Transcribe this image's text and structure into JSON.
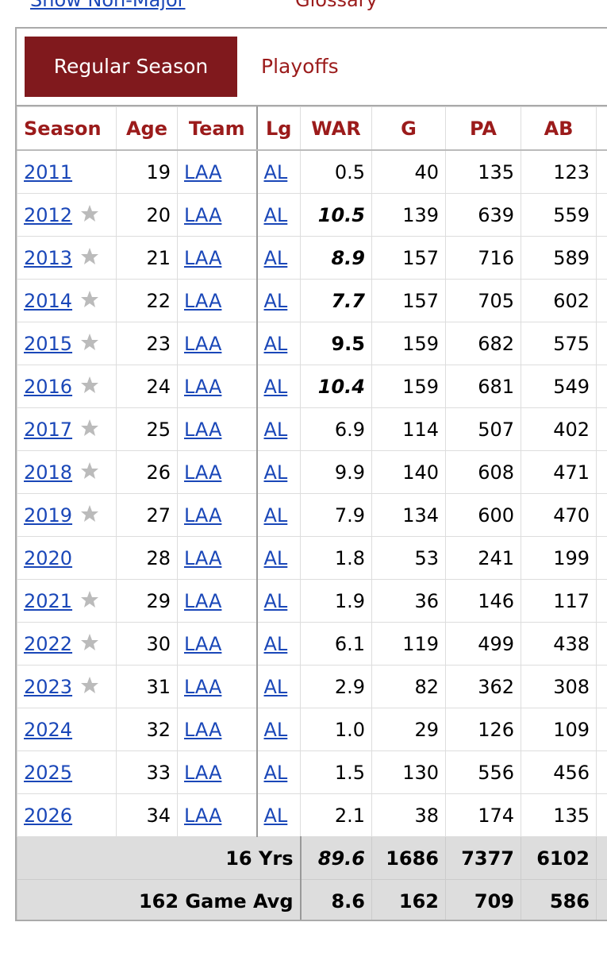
{
  "top_links": {
    "left": "Show Non-Major",
    "right": "Glossary"
  },
  "tabs": {
    "active": "Regular Season",
    "other": "Playoffs"
  },
  "table": {
    "headers": [
      "Season",
      "Age",
      "Team",
      "Lg",
      "WAR",
      "G",
      "PA",
      "AB"
    ],
    "rows": [
      {
        "season": "2011",
        "all_star": false,
        "age": 19,
        "team": "LAA",
        "lg": "AL",
        "war": "0.5",
        "g": 40,
        "pa": 135,
        "ab": 123
      },
      {
        "season": "2012",
        "all_star": true,
        "age": 20,
        "team": "LAA",
        "lg": "AL",
        "war": "10.5",
        "war_emphasis": "bold-italic",
        "g": 139,
        "pa": 639,
        "ab": 559
      },
      {
        "season": "2013",
        "all_star": true,
        "age": 21,
        "team": "LAA",
        "lg": "AL",
        "war": "8.9",
        "war_emphasis": "bold-italic",
        "g": 157,
        "pa": 716,
        "ab": 589
      },
      {
        "season": "2014",
        "all_star": true,
        "age": 22,
        "team": "LAA",
        "lg": "AL",
        "war": "7.7",
        "war_emphasis": "bold-italic",
        "g": 157,
        "pa": 705,
        "ab": 602
      },
      {
        "season": "2015",
        "all_star": true,
        "age": 23,
        "team": "LAA",
        "lg": "AL",
        "war": "9.5",
        "war_emphasis": "bold",
        "g": 159,
        "pa": 682,
        "ab": 575
      },
      {
        "season": "2016",
        "all_star": true,
        "age": 24,
        "team": "LAA",
        "lg": "AL",
        "war": "10.4",
        "war_emphasis": "bold-italic",
        "g": 159,
        "pa": 681,
        "ab": 549
      },
      {
        "season": "2017",
        "all_star": true,
        "age": 25,
        "team": "LAA",
        "lg": "AL",
        "war": "6.9",
        "g": 114,
        "pa": 507,
        "ab": 402
      },
      {
        "season": "2018",
        "all_star": true,
        "age": 26,
        "team": "LAA",
        "lg": "AL",
        "war": "9.9",
        "g": 140,
        "pa": 608,
        "ab": 471
      },
      {
        "season": "2019",
        "all_star": true,
        "age": 27,
        "team": "LAA",
        "lg": "AL",
        "war": "7.9",
        "g": 134,
        "pa": 600,
        "ab": 470
      },
      {
        "season": "2020",
        "all_star": false,
        "age": 28,
        "team": "LAA",
        "lg": "AL",
        "war": "1.8",
        "g": 53,
        "pa": 241,
        "ab": 199
      },
      {
        "season": "2021",
        "all_star": true,
        "age": 29,
        "team": "LAA",
        "lg": "AL",
        "war": "1.9",
        "g": 36,
        "pa": 146,
        "ab": 117
      },
      {
        "season": "2022",
        "all_star": true,
        "age": 30,
        "team": "LAA",
        "lg": "AL",
        "war": "6.1",
        "g": 119,
        "pa": 499,
        "ab": 438
      },
      {
        "season": "2023",
        "all_star": true,
        "age": 31,
        "team": "LAA",
        "lg": "AL",
        "war": "2.9",
        "g": 82,
        "pa": 362,
        "ab": 308
      },
      {
        "season": "2024",
        "all_star": false,
        "age": 32,
        "team": "LAA",
        "lg": "AL",
        "war": "1.0",
        "g": 29,
        "pa": 126,
        "ab": 109
      },
      {
        "season": "2025",
        "all_star": false,
        "age": 33,
        "team": "LAA",
        "lg": "AL",
        "war": "1.5",
        "g": 130,
        "pa": 556,
        "ab": 456
      },
      {
        "season": "2026",
        "all_star": false,
        "age": 34,
        "team": "LAA",
        "lg": "AL",
        "war": "2.1",
        "g": 38,
        "pa": 174,
        "ab": 135
      }
    ],
    "footer": [
      {
        "label": "16 Yrs",
        "war": "89.6",
        "war_emphasis": "bold-italic",
        "g": 1686,
        "pa": 7377,
        "ab": 6102
      },
      {
        "label": "162 Game Avg",
        "war": "8.6",
        "war_emphasis": "bold",
        "g": 162,
        "pa": 709,
        "ab": 586
      }
    ]
  }
}
